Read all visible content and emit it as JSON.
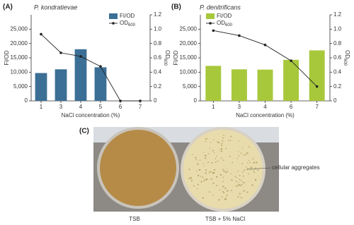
{
  "chart_data": [
    {
      "type": "bar",
      "panel_label": "(A)",
      "title": "P. kondratievae",
      "categories": [
        "1",
        "3",
        "4",
        "5",
        "6",
        "7"
      ],
      "xlabel": "NaCl concentration (%)",
      "ylabel": "FI/OD",
      "y2label": "OD",
      "y2label_subscript": "600",
      "ylim": [
        0,
        30000
      ],
      "yticks": [
        0,
        {
          "value": 5000,
          "label": "5,000"
        },
        {
          "value": 10000,
          "label": "10,000"
        },
        {
          "value": 15000,
          "label": "15,000"
        },
        {
          "value": 20000,
          "label": "20,000"
        },
        {
          "value": 25000,
          "label": "25,000"
        }
      ],
      "y2lim": [
        0,
        1.2
      ],
      "y2ticks": [
        0,
        0.2,
        0.4,
        0.6,
        0.8,
        {
          "value": 1,
          "label": "1.0"
        },
        1.2
      ],
      "legend": "upper right",
      "series": [
        {
          "name": "FI/OD",
          "type": "bar",
          "color": "#3b6f95",
          "values": [
            9700,
            11000,
            18000,
            11700,
            0,
            0
          ]
        },
        {
          "name": "OD",
          "name_subscript": "600",
          "type": "line",
          "color": "#222222",
          "axis": "y2",
          "values": [
            0.93,
            0.67,
            0.62,
            0.48,
            0.0,
            0.0
          ]
        }
      ]
    },
    {
      "type": "bar",
      "panel_label": "(B)",
      "title": "P. denitrificans",
      "categories": [
        "1",
        "3",
        "4",
        "6",
        "7"
      ],
      "xlabel": "NaCl concentration (%)",
      "ylabel": "FI/OD",
      "y2label": "OD",
      "y2label_subscript": "600",
      "ylim": [
        0,
        30000
      ],
      "yticks": [
        0,
        {
          "value": 5000,
          "label": "5,000"
        },
        {
          "value": 10000,
          "label": "10,000"
        },
        {
          "value": 15000,
          "label": "15,000"
        },
        {
          "value": 20000,
          "label": "20,000"
        },
        {
          "value": 25000,
          "label": "25,000"
        }
      ],
      "y2lim": [
        0,
        1.2
      ],
      "y2ticks": [
        0,
        0.2,
        0.4,
        0.6,
        0.8,
        {
          "value": 1,
          "label": "1.0"
        },
        1.2
      ],
      "legend": "upper left",
      "series": [
        {
          "name": "FI/OD",
          "type": "bar",
          "color": "#a8c83c",
          "values": [
            12200,
            11000,
            10900,
            14300,
            17600
          ]
        },
        {
          "name": "OD",
          "name_subscript": "600",
          "type": "line",
          "color": "#222222",
          "axis": "y2",
          "values": [
            0.98,
            0.91,
            0.78,
            0.56,
            0.2
          ]
        }
      ]
    }
  ],
  "panel_c": {
    "panel_label": "(C)",
    "annotation": "cellular aggregates",
    "left_plate": "TSB",
    "right_plate": "TSB + 5% NaCl"
  }
}
